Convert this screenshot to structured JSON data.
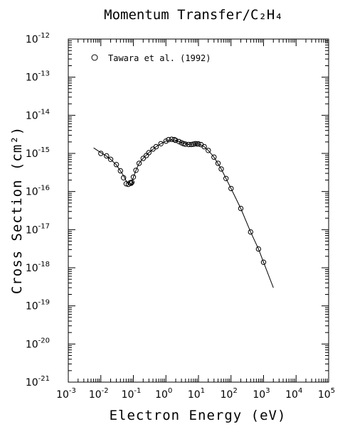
{
  "chart_data": {
    "type": "scatter",
    "title": "Momentum Transfer/C₂H₄",
    "xlabel": "Electron Energy (eV)",
    "ylabel": "Cross Section (cm²)",
    "xscale": "log",
    "yscale": "log",
    "xlim": [
      0.001,
      100000
    ],
    "ylim": [
      1e-21,
      1e-12
    ],
    "x_ticks": [
      "10^-3",
      "10^-2",
      "10^-1",
      "10^0",
      "10^1",
      "10^2",
      "10^3",
      "10^4",
      "10^5"
    ],
    "y_ticks": [
      "10^-21",
      "10^-20",
      "10^-19",
      "10^-18",
      "10^-17",
      "10^-16",
      "10^-15",
      "10^-14",
      "10^-13",
      "10^-12"
    ],
    "legend": {
      "position": "top-left",
      "label": "Tawara et al. (1992)"
    },
    "series": [
      {
        "name": "Tawara et al. (1992)",
        "marker": "open-circle",
        "x": [
          0.01,
          0.015,
          0.02,
          0.03,
          0.04,
          0.05,
          0.06,
          0.07,
          0.08,
          0.085,
          0.09,
          0.1,
          0.12,
          0.15,
          0.2,
          0.25,
          0.3,
          0.4,
          0.5,
          0.7,
          1.0,
          1.2,
          1.5,
          1.8,
          2.0,
          2.5,
          3.0,
          3.5,
          4.0,
          5.0,
          6.0,
          7.0,
          8.0,
          9.0,
          10,
          12,
          15,
          20,
          30,
          40,
          50,
          70,
          100,
          200,
          400,
          700,
          1000
        ],
        "y": [
          1e-15,
          8.6e-16,
          7e-16,
          5.1e-16,
          3.5e-16,
          2.3e-16,
          1.6e-16,
          1.55e-16,
          1.7e-16,
          1.65e-16,
          1.75e-16,
          2.4e-16,
          3.6e-16,
          5.5e-16,
          7.4e-16,
          8.8e-16,
          1.05e-15,
          1.3e-15,
          1.5e-15,
          1.8e-15,
          2.1e-15,
          2.3e-15,
          2.35e-15,
          2.3e-15,
          2.2e-15,
          2.05e-15,
          1.9e-15,
          1.8e-15,
          1.75e-15,
          1.72e-15,
          1.72e-15,
          1.75e-15,
          1.8e-15,
          1.78e-15,
          1.78e-15,
          1.7e-15,
          1.5e-15,
          1.2e-15,
          8e-16,
          5.5e-16,
          3.9e-16,
          2.2e-16,
          1.2e-16,
          3.6e-17,
          8.7e-18,
          3.1e-18,
          1.4e-18
        ]
      },
      {
        "name": "",
        "marker": "line",
        "x": [
          0.006,
          0.01,
          0.015,
          0.02,
          0.03,
          0.05,
          0.06,
          0.07,
          0.08,
          0.085,
          0.09,
          0.1,
          0.12,
          0.15,
          0.2,
          0.3,
          0.5,
          0.7,
          1.0,
          1.5,
          2.0,
          3.0,
          5.0,
          8.0,
          10,
          15,
          20,
          30,
          50,
          100,
          200,
          400,
          700,
          1000,
          2000
        ],
        "y": [
          1.4e-15,
          1.05e-15,
          8.5e-16,
          7e-16,
          5e-16,
          2.6e-16,
          1.9e-16,
          1.55e-16,
          1.45e-16,
          1.5e-16,
          1.7e-16,
          2.4e-16,
          3.6e-16,
          5.5e-16,
          7.5e-16,
          1.05e-15,
          1.5e-15,
          1.8e-15,
          2.1e-15,
          2.3e-15,
          2.2e-15,
          1.9e-15,
          1.72e-15,
          1.78e-15,
          1.78e-15,
          1.5e-15,
          1.2e-15,
          8e-16,
          3.9e-16,
          1.2e-16,
          3.6e-17,
          8.7e-18,
          3.1e-18,
          1.4e-18,
          3e-19
        ]
      }
    ]
  }
}
